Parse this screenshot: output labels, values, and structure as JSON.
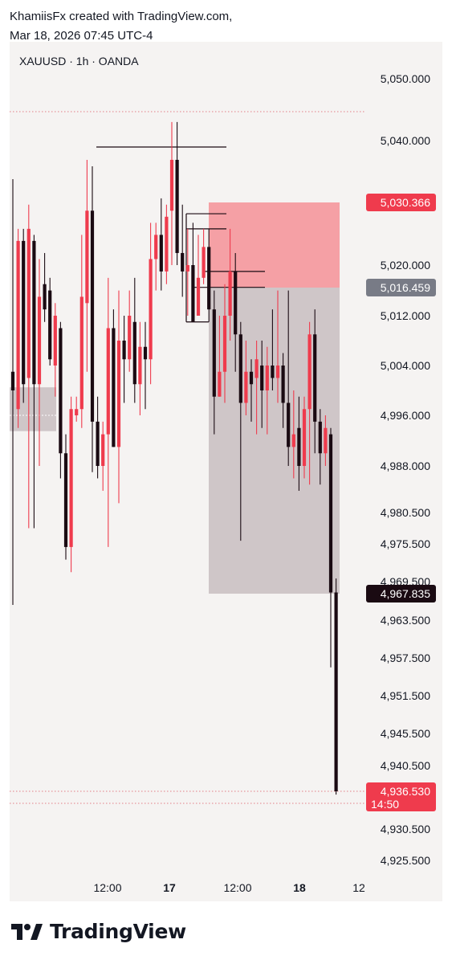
{
  "header": {
    "line1": "KhamiisFx created with TradingView.com,",
    "line2": "Mar 18, 2026 07:45 UTC-4"
  },
  "symbol_info": "XAUUSD · 1h · OANDA",
  "brand": "TradingView",
  "colors": {
    "up": "#ef3b4d",
    "down": "#1a0a12",
    "supply_zone": "#f5a0a5",
    "range_box": "#cfc6c8",
    "background": "#f5f3f2",
    "price_label_red": "#ef3b4d",
    "price_label_gray": "#787b86",
    "price_label_dark": "#1a0a12"
  },
  "chart_data": {
    "type": "candlestick",
    "symbol": "XAUUSD",
    "timeframe": "1h",
    "broker": "OANDA",
    "x_labels": [
      {
        "text": "12:00",
        "bold": false
      },
      {
        "text": "17",
        "bold": true
      },
      {
        "text": "12:00",
        "bold": false
      },
      {
        "text": "18",
        "bold": true
      },
      {
        "text": "12",
        "bold": false
      }
    ],
    "price_ticks": [
      "5,050.000",
      "5,040.000",
      "5,020.000",
      "5,012.000",
      "5,004.000",
      "4,996.000",
      "4,988.000",
      "4,980.500",
      "4,975.500",
      "4,969.500",
      "4,963.500",
      "4,957.500",
      "4,951.500",
      "4,945.500",
      "4,940.500",
      "4,930.500",
      "4,925.500"
    ],
    "price_tags": [
      {
        "label": "5,030.366",
        "value": 5030.366,
        "style": "red"
      },
      {
        "label": "5,016.459",
        "value": 5016.459,
        "style": "gray"
      },
      {
        "label": "4,967.835",
        "value": 4967.835,
        "style": "dark"
      },
      {
        "label": "4,936.530",
        "value": 4936.53,
        "style": "red",
        "sub": "14:50"
      }
    ],
    "zones": [
      {
        "name": "supply zone",
        "top": 5030.366,
        "bottom": 5016.459,
        "color": "supply"
      },
      {
        "name": "range box",
        "top": 5016.459,
        "bottom": 4967.835,
        "color": "range"
      },
      {
        "name": "left box",
        "top": 5000.5,
        "bottom": 4993.5,
        "color": "range"
      }
    ],
    "candles": [
      [
        5003,
        5000,
        5034,
        4966
      ],
      [
        4997,
        5024,
        5026,
        4994
      ],
      [
        5024,
        5001,
        5026,
        4998
      ],
      [
        5002,
        5026,
        5030,
        4978
      ],
      [
        5024,
        5001,
        5025,
        4978
      ],
      [
        5001,
        5015,
        5021,
        4988
      ],
      [
        5017,
        5013,
        5022,
        5011
      ],
      [
        5016,
        5005,
        5018,
        5004
      ],
      [
        5004,
        5012,
        5014,
        4999
      ],
      [
        5010,
        4990,
        5011,
        4986
      ],
      [
        4990,
        4975,
        4993,
        4973
      ],
      [
        4975,
        4997,
        4999,
        4971
      ],
      [
        4996,
        4997,
        4999,
        4995
      ],
      [
        4997,
        5015,
        5025,
        4994
      ],
      [
        5014,
        5029,
        5037,
        5003
      ],
      [
        5029,
        4995,
        5036,
        4987
      ],
      [
        4995,
        4988,
        4999,
        4986
      ],
      [
        4988,
        4993,
        4995,
        4984
      ],
      [
        4993,
        5010,
        5018,
        4975
      ],
      [
        5010,
        4991,
        5013,
        4991
      ],
      [
        4991,
        5008,
        5016,
        4982
      ],
      [
        5008,
        5005,
        5012,
        4998
      ],
      [
        5005,
        5012,
        5016,
        5003
      ],
      [
        5011,
        5001,
        5018,
        4998
      ],
      [
        5001,
        5007,
        5011,
        4996
      ],
      [
        5007,
        5005,
        5011,
        4997
      ],
      [
        5005,
        5021,
        5027,
        5001
      ],
      [
        5021,
        5025,
        5027,
        5016
      ],
      [
        5025,
        5019,
        5031,
        5016
      ],
      [
        5019,
        5028,
        5030,
        5017
      ],
      [
        5029,
        5037,
        5043,
        5020
      ],
      [
        5037,
        5022,
        5043,
        5020
      ],
      [
        5022,
        5019,
        5030,
        5015
      ],
      [
        5019,
        5020,
        5026,
        5012
      ],
      [
        5020,
        5011,
        5027,
        5011
      ],
      [
        5012,
        5018,
        5025,
        5012
      ],
      [
        5018,
        5023,
        5026,
        5017
      ],
      [
        5023,
        5013,
        5026,
        5011
      ],
      [
        5013,
        4999,
        5016,
        4993
      ],
      [
        4999,
        5003,
        5012,
        4999
      ],
      [
        5003,
        5012,
        5017,
        4998
      ],
      [
        5012,
        5019,
        5026,
        5008
      ],
      [
        5019,
        5009,
        5022,
        5003
      ],
      [
        5009,
        4998,
        5011,
        4976
      ],
      [
        4998,
        5003,
        5008,
        4996
      ],
      [
        5003,
        5001,
        5005,
        4995
      ],
      [
        5002,
        5005,
        5008,
        4993
      ],
      [
        5004,
        5000,
        5008,
        4994
      ],
      [
        5000,
        5004,
        5007,
        4993
      ],
      [
        5004,
        5002,
        5013,
        5000
      ],
      [
        5002,
        5004,
        5016,
        4998
      ],
      [
        5004,
        4998,
        5006,
        4994
      ],
      [
        4998,
        4991,
        5016,
        4988
      ],
      [
        4991,
        4993,
        5000,
        4986
      ],
      [
        4994,
        4988,
        4999,
        4984
      ],
      [
        4988,
        4997,
        4999,
        4986
      ],
      [
        4997,
        5009,
        5011,
        4985
      ],
      [
        5009,
        4995,
        5013,
        4990
      ],
      [
        4995,
        4990,
        4997,
        4985
      ],
      [
        4990,
        4994,
        4996,
        4988
      ],
      [
        4993,
        4968,
        4994,
        4956
      ],
      [
        4968,
        4936.53,
        4970,
        4936
      ]
    ]
  }
}
